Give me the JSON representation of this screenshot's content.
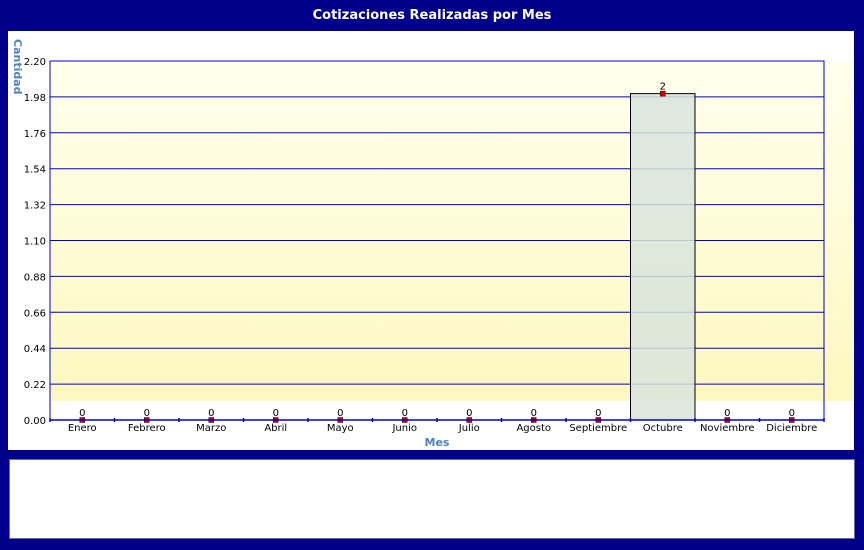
{
  "chart_data": {
    "type": "bar",
    "title": "Cotizaciones Realizadas por Mes",
    "xlabel": "Mes",
    "ylabel": "Cantidad",
    "categories": [
      "Enero",
      "Febrero",
      "Marzo",
      "Abril",
      "Mayo",
      "Junio",
      "Julio",
      "Agosto",
      "Septiembre",
      "Octubre",
      "Noviembre",
      "Diciembre"
    ],
    "values": [
      0,
      0,
      0,
      0,
      0,
      0,
      0,
      0,
      0,
      2,
      0,
      0
    ],
    "data_labels": [
      "0",
      "0",
      "0",
      "0",
      "0",
      "0",
      "0",
      "0",
      "0",
      "2",
      "0",
      "0"
    ],
    "ylim": [
      0,
      2.2
    ],
    "yticks": [
      "0.00",
      "0.22",
      "0.44",
      "0.66",
      "0.88",
      "1.10",
      "1.32",
      "1.54",
      "1.76",
      "1.98",
      "2.20"
    ],
    "grid": true,
    "colors": {
      "frame": "#00008b",
      "gridline": "#0000cd",
      "axis_label": "#4f81bd",
      "bar_fill": "#d8e4dc",
      "bar_stroke": "#000000",
      "marker": "#cc0000",
      "plot_bg_top": "#ffffee",
      "plot_bg_bottom": "#fdf8c0"
    }
  }
}
